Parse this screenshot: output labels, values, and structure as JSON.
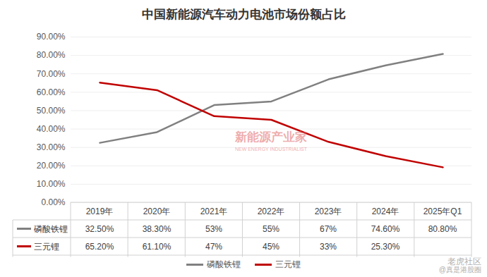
{
  "chart_data": {
    "type": "line",
    "title": "中国新能源汽车动力电池市场份额占比",
    "categories": [
      "2019年",
      "2020年",
      "2021年",
      "2022年",
      "2023年",
      "2024年",
      "2025年Q1"
    ],
    "series": [
      {
        "name": "磷酸铁锂",
        "color": "#808080",
        "values": [
          32.5,
          38.3,
          53,
          55,
          67,
          74.6,
          80.8
        ],
        "value_labels": [
          "32.50%",
          "38.30%",
          "53%",
          "55%",
          "67%",
          "74.60%",
          "80.80%"
        ]
      },
      {
        "name": "三元锂",
        "color": "#c00000",
        "values": [
          65.2,
          61.1,
          47,
          45,
          33,
          25.3,
          19.2
        ],
        "value_labels": [
          "65.20%",
          "61.10%",
          "47%",
          "45%",
          "33%",
          "25.30%",
          null
        ]
      }
    ],
    "ylim": [
      0,
      90
    ],
    "yticks": [
      {
        "value": 0,
        "label": "0.00%"
      },
      {
        "value": 10,
        "label": "10.00%"
      },
      {
        "value": 20,
        "label": "20.00%"
      },
      {
        "value": 30,
        "label": "30.00%"
      },
      {
        "value": 40,
        "label": "40.00%"
      },
      {
        "value": 50,
        "label": "50.00%"
      },
      {
        "value": 60,
        "label": "60.00%"
      },
      {
        "value": 70,
        "label": "70.00%"
      },
      {
        "value": 80,
        "label": "80.00%"
      },
      {
        "value": 90,
        "label": "90.00%"
      }
    ],
    "grid": true,
    "legend": "bottom",
    "annotations": [
      "新能源产业家",
      "NEW ENERGY INDUSTRIALIST",
      "老虎社区",
      "@真是港股圈"
    ]
  }
}
